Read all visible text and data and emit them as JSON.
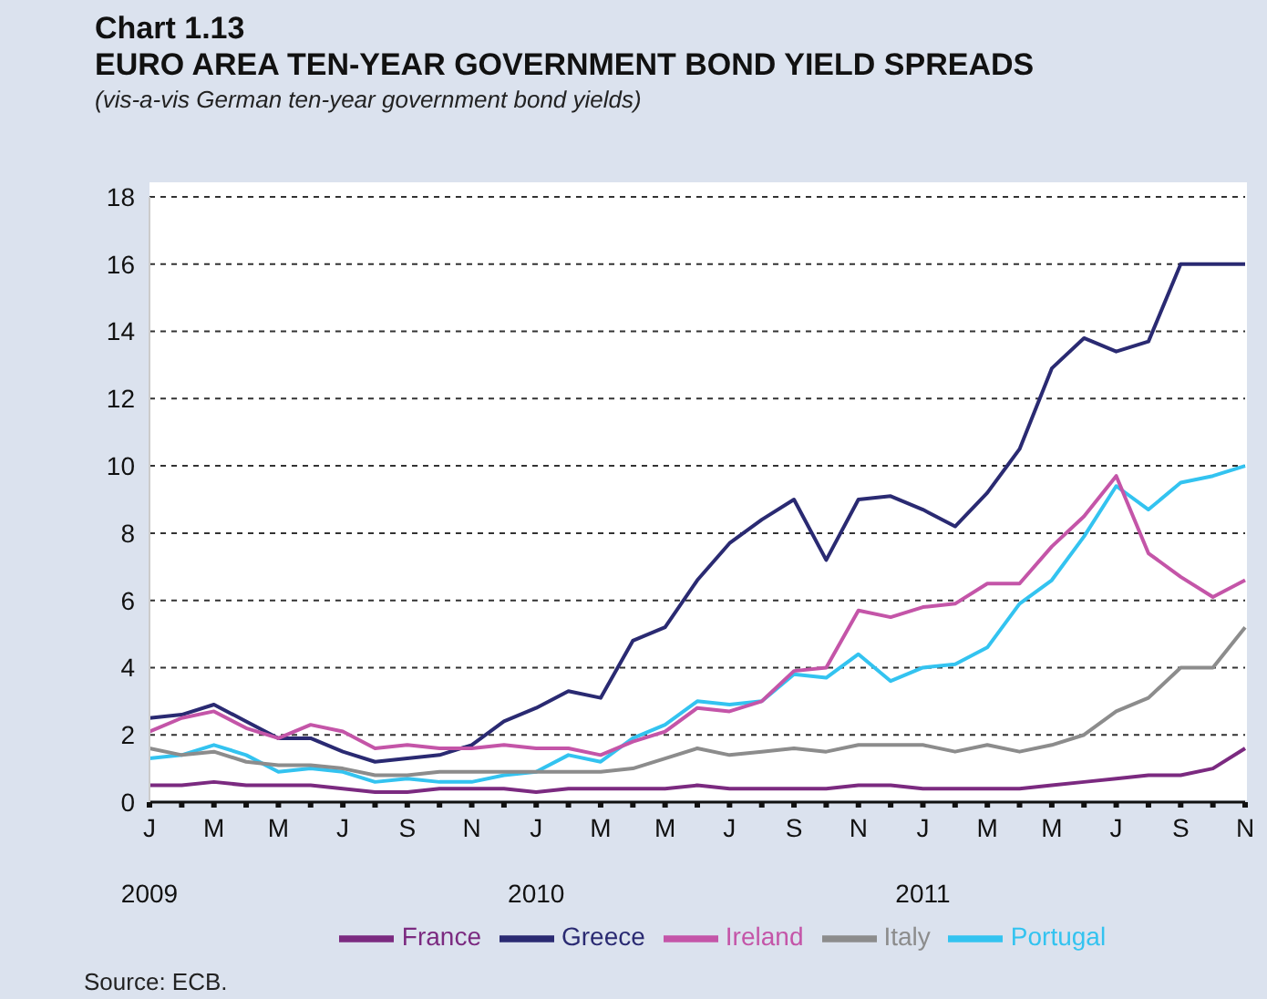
{
  "chart_data": {
    "type": "line",
    "title": "Chart 1.13\nEURO AREA TEN-YEAR GOVERNMENT BOND YIELD SPREADS",
    "subtitle": "(vis-a-vis German ten-year government bond yields)",
    "categories": [
      "J\n2009",
      null,
      "M",
      null,
      "M",
      null,
      "J",
      null,
      "S",
      null,
      "N",
      null,
      "J\n2010",
      null,
      "M",
      null,
      "M",
      null,
      "J",
      null,
      "S",
      null,
      "N",
      null,
      "J\n2011",
      null,
      "M",
      null,
      "M",
      null,
      "J",
      null,
      "S",
      null,
      "N"
    ],
    "series": [
      {
        "name": "Greece",
        "color": "#2a2a72",
        "values": [
          2.5,
          2.6,
          2.9,
          2.4,
          1.9,
          1.9,
          1.5,
          1.2,
          1.3,
          1.4,
          1.7,
          2.4,
          2.8,
          3.3,
          3.1,
          4.8,
          5.2,
          6.6,
          7.7,
          8.4,
          9.0,
          7.2,
          9.0,
          9.1,
          8.7,
          8.2,
          9.2,
          10.5,
          12.9,
          13.8,
          13.4,
          13.7,
          16.0,
          16.0,
          16.0
        ]
      },
      {
        "name": "Portugal",
        "color": "#33c3f0",
        "values": [
          1.3,
          1.4,
          1.7,
          1.4,
          0.9,
          1.0,
          0.9,
          0.6,
          0.7,
          0.6,
          0.6,
          0.8,
          0.9,
          1.4,
          1.2,
          1.9,
          2.3,
          3.0,
          2.9,
          3.0,
          3.8,
          3.7,
          4.4,
          3.6,
          4.0,
          4.1,
          4.6,
          5.9,
          6.6,
          7.9,
          9.4,
          8.7,
          9.5,
          9.7,
          10.0
        ]
      },
      {
        "name": "Ireland",
        "color": "#c455a8",
        "values": [
          2.1,
          2.5,
          2.7,
          2.2,
          1.9,
          2.3,
          2.1,
          1.6,
          1.7,
          1.6,
          1.6,
          1.7,
          1.6,
          1.6,
          1.4,
          1.8,
          2.1,
          2.8,
          2.7,
          3.0,
          3.9,
          4.0,
          5.7,
          5.5,
          5.8,
          5.9,
          6.5,
          6.5,
          7.6,
          8.5,
          9.7,
          7.4,
          6.7,
          6.1,
          6.6
        ]
      },
      {
        "name": "France",
        "color": "#7b2a80",
        "values": [
          0.5,
          0.5,
          0.6,
          0.5,
          0.5,
          0.5,
          0.4,
          0.3,
          0.3,
          0.4,
          0.4,
          0.4,
          0.3,
          0.4,
          0.4,
          0.4,
          0.4,
          0.5,
          0.4,
          0.4,
          0.4,
          0.4,
          0.5,
          0.5,
          0.4,
          0.4,
          0.4,
          0.4,
          0.5,
          0.6,
          0.7,
          0.8,
          0.8,
          1.0,
          1.6
        ]
      },
      {
        "name": "Italy",
        "color": "#8c8c8c",
        "values": [
          1.6,
          1.4,
          1.5,
          1.2,
          1.1,
          1.1,
          1.0,
          0.8,
          0.8,
          0.9,
          0.9,
          0.9,
          0.9,
          0.9,
          0.9,
          1.0,
          1.3,
          1.6,
          1.4,
          1.5,
          1.6,
          1.5,
          1.7,
          1.7,
          1.7,
          1.5,
          1.7,
          1.5,
          1.7,
          2.0,
          2.7,
          3.1,
          4.0,
          4.0,
          5.2
        ]
      }
    ],
    "ylim": [
      0,
      18
    ],
    "yticks": [
      0,
      2,
      4,
      6,
      8,
      10,
      12,
      14,
      16,
      18
    ],
    "grid": "y",
    "legend": "bottom",
    "marker": "none",
    "line_style": "solid",
    "annotations": [
      "Source: ECB."
    ]
  }
}
